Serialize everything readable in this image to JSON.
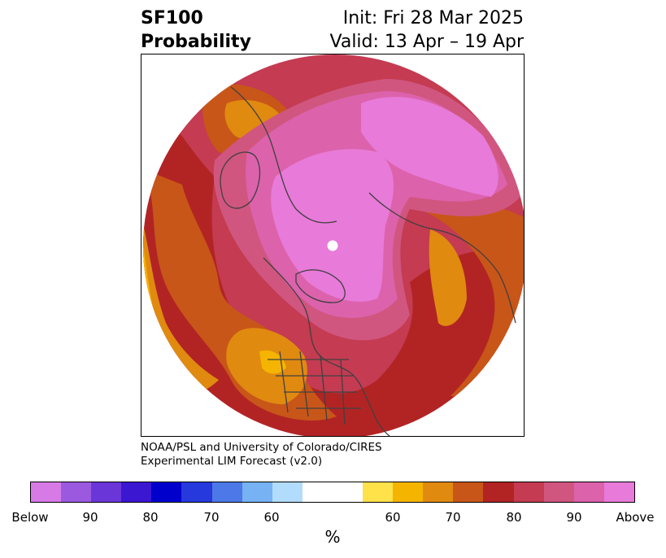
{
  "header": {
    "title_line1": "SF100",
    "title_line2": "Probability",
    "init_text": "Init: Fri 28 Mar 2025",
    "valid_text": "Valid: 13 Apr – 19 Apr"
  },
  "credits": {
    "line1": "NOAA/PSL and University of Colorado/CIRES",
    "line2": "Experimental LIM Forecast (v2.0)"
  },
  "colorbar": {
    "unit": "%",
    "colors": [
      "#d77ae6",
      "#9b59e0",
      "#6a36d8",
      "#3b17d2",
      "#0000cd",
      "#2639dc",
      "#4c78e8",
      "#76b2f4",
      "#b2dcfb",
      "#ffffff",
      "#ffe14a",
      "#f5b400",
      "#e08a10",
      "#c85618",
      "#b22424",
      "#c43b52",
      "#d0567f",
      "#dc62ac",
      "#e87ad9"
    ],
    "tick_labels": [
      "Below",
      "90",
      "80",
      "70",
      "60",
      "60",
      "70",
      "80",
      "90",
      "Above"
    ]
  },
  "map": {
    "projection": "north polar stereographic",
    "colors": {
      "above": "#e87ad9",
      "p90": "#dc62ac",
      "p85": "#d0567f",
      "p80": "#c43b52",
      "p75": "#b22424",
      "p70": "#c85618",
      "p65": "#e08a10",
      "p60": "#f5b400",
      "p55": "#ffe14a",
      "coast": "#404040"
    }
  }
}
